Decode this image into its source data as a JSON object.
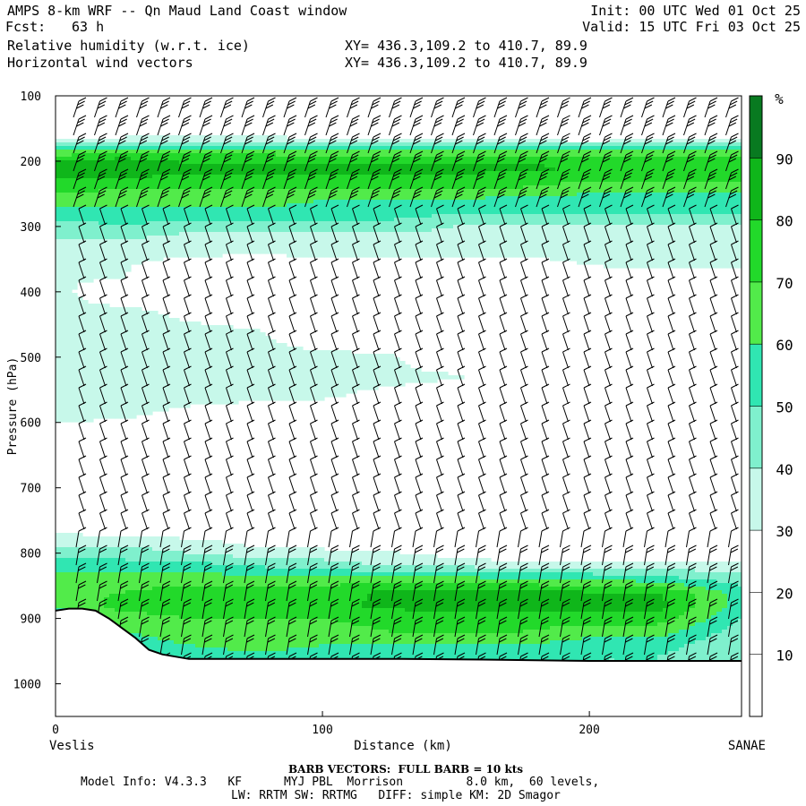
{
  "header": {
    "title": "AMPS 8-km WRF -- Qn Maud Land Coast window",
    "fcst_label": "Fcst:",
    "fcst_value": "63 h",
    "field1": "Relative humidity (w.r.t. ice)",
    "field2": "Horizontal wind vectors",
    "init": "Init: 00 UTC Wed 01 Oct 25",
    "valid": "Valid: 15 UTC Fri 03 Oct 25",
    "xy1": "XY= 436.3,109.2 to 410.7, 89.9",
    "xy2": "XY= 436.3,109.2 to 410.7, 89.9"
  },
  "footer": {
    "barb_note": "BARB VECTORS:  FULL BARB = 10 kts",
    "model_line1": "Model Info: V4.3.3   KF      MYJ PBL  Morrison         8.0 km,  60 levels,",
    "model_line2": "LW: RRTM SW: RRTMG   DIFF: simple KM: 2D Smagor"
  },
  "colors": {
    "rh_levels": [
      "#ffffff",
      "#ffffff",
      "#ffffff",
      "#c7f8ea",
      "#7ff0cd",
      "#30e6b2",
      "#52eb4a",
      "#22d92a",
      "#0fb61a",
      "#087a20"
    ],
    "terrain": "#ffffff",
    "axis": "#000000"
  },
  "chart_data": {
    "type": "heatmap",
    "title": "Relative humidity (w.r.t. ice)",
    "xlabel": "Distance (km)",
    "ylabel": "Pressure (hPa)",
    "xlim": [
      0,
      257
    ],
    "ylim": [
      1050,
      100
    ],
    "x_ticks": [
      0,
      100,
      200
    ],
    "y_ticks": [
      100,
      200,
      300,
      400,
      500,
      600,
      700,
      800,
      900,
      1000
    ],
    "x_end_labels": {
      "left": "Veslis",
      "right": "SANAE"
    },
    "colorbar": {
      "unit": "%",
      "levels": [
        10,
        20,
        30,
        40,
        50,
        60,
        70,
        80,
        90
      ]
    },
    "rh_x": [
      0,
      25,
      50,
      75,
      100,
      125,
      150,
      175,
      200,
      225,
      257
    ],
    "rh_p": [
      120,
      150,
      170,
      180,
      195,
      210,
      225,
      240,
      260,
      280,
      300,
      320,
      340,
      360,
      380,
      400,
      430,
      460,
      500,
      530,
      560,
      590,
      620,
      680,
      740,
      760,
      780,
      800,
      820,
      840,
      860,
      880,
      900,
      920,
      940,
      960
    ],
    "rh": [
      [
        0,
        0,
        0,
        0,
        0,
        0,
        0,
        0,
        0,
        0,
        0
      ],
      [
        20,
        20,
        20,
        20,
        10,
        10,
        10,
        10,
        10,
        10,
        10
      ],
      [
        35,
        35,
        40,
        40,
        35,
        35,
        35,
        35,
        30,
        35,
        35
      ],
      [
        55,
        60,
        60,
        60,
        55,
        55,
        55,
        55,
        55,
        55,
        55
      ],
      [
        75,
        80,
        75,
        75,
        75,
        75,
        75,
        75,
        75,
        75,
        75
      ],
      [
        92,
        88,
        85,
        85,
        85,
        85,
        85,
        82,
        80,
        80,
        80
      ],
      [
        80,
        80,
        78,
        78,
        78,
        78,
        78,
        75,
        75,
        75,
        75
      ],
      [
        75,
        70,
        70,
        70,
        70,
        70,
        70,
        70,
        65,
        65,
        65
      ],
      [
        65,
        65,
        65,
        65,
        60,
        60,
        60,
        55,
        55,
        55,
        55
      ],
      [
        55,
        55,
        55,
        55,
        55,
        55,
        50,
        50,
        50,
        50,
        50
      ],
      [
        45,
        50,
        45,
        45,
        45,
        45,
        40,
        40,
        40,
        40,
        40
      ],
      [
        40,
        40,
        35,
        35,
        35,
        35,
        35,
        35,
        35,
        35,
        35
      ],
      [
        35,
        35,
        35,
        30,
        35,
        35,
        35,
        35,
        35,
        35,
        35
      ],
      [
        32,
        32,
        20,
        20,
        20,
        20,
        20,
        20,
        30,
        32,
        32
      ],
      [
        32,
        30,
        15,
        15,
        15,
        15,
        15,
        15,
        15,
        15,
        15
      ],
      [
        35,
        15,
        15,
        15,
        15,
        15,
        15,
        15,
        15,
        15,
        15
      ],
      [
        35,
        35,
        25,
        15,
        15,
        15,
        15,
        15,
        15,
        15,
        15
      ],
      [
        35,
        35,
        35,
        32,
        15,
        15,
        15,
        15,
        15,
        15,
        15
      ],
      [
        35,
        35,
        35,
        35,
        35,
        32,
        15,
        15,
        15,
        15,
        15
      ],
      [
        35,
        35,
        35,
        35,
        35,
        35,
        32,
        15,
        15,
        15,
        15
      ],
      [
        35,
        35,
        35,
        35,
        32,
        25,
        15,
        15,
        15,
        15,
        15
      ],
      [
        35,
        32,
        25,
        15,
        15,
        15,
        15,
        15,
        15,
        15,
        15
      ],
      [
        20,
        15,
        15,
        15,
        15,
        15,
        15,
        15,
        15,
        15,
        15
      ],
      [
        15,
        15,
        15,
        15,
        15,
        15,
        15,
        15,
        15,
        15,
        15
      ],
      [
        15,
        15,
        15,
        15,
        15,
        15,
        15,
        15,
        15,
        15,
        15
      ],
      [
        25,
        20,
        15,
        15,
        15,
        15,
        15,
        15,
        15,
        15,
        15
      ],
      [
        35,
        35,
        32,
        25,
        20,
        15,
        15,
        15,
        15,
        15,
        15
      ],
      [
        45,
        45,
        40,
        35,
        35,
        32,
        25,
        20,
        20,
        20,
        20
      ],
      [
        55,
        55,
        55,
        50,
        45,
        40,
        40,
        35,
        35,
        35,
        35
      ],
      [
        65,
        65,
        65,
        65,
        65,
        65,
        65,
        60,
        60,
        55,
        45
      ],
      [
        65,
        70,
        75,
        75,
        75,
        82,
        85,
        85,
        80,
        80,
        55
      ],
      [
        60,
        75,
        75,
        75,
        78,
        82,
        85,
        85,
        85,
        85,
        55
      ],
      [
        55,
        65,
        70,
        70,
        70,
        75,
        75,
        75,
        75,
        75,
        50
      ],
      [
        55,
        60,
        65,
        65,
        65,
        70,
        70,
        70,
        65,
        65,
        45
      ],
      [
        50,
        55,
        60,
        65,
        60,
        60,
        60,
        60,
        55,
        55,
        40
      ],
      [
        45,
        50,
        55,
        55,
        55,
        55,
        55,
        55,
        50,
        50,
        40
      ]
    ],
    "terrain_profile": {
      "x": [
        0,
        5,
        10,
        15,
        20,
        25,
        30,
        35,
        40,
        50,
        60,
        80,
        100,
        130,
        160,
        200,
        230,
        257
      ],
      "p": [
        888,
        885,
        885,
        888,
        900,
        915,
        930,
        948,
        955,
        962,
        962,
        962,
        962,
        962,
        963,
        965,
        965,
        965
      ]
    }
  }
}
